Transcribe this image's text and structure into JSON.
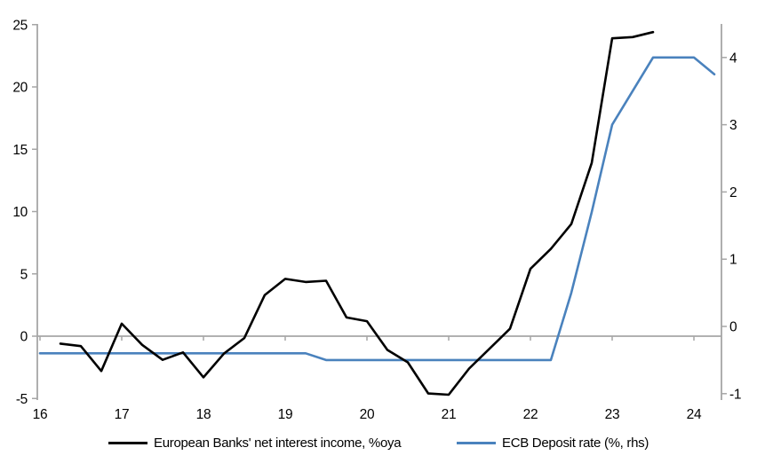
{
  "chart_data": {
    "type": "line",
    "title": "",
    "x_axis": {
      "ticks": [
        16,
        17,
        18,
        19,
        20,
        21,
        22,
        23,
        24
      ],
      "range": [
        15.97,
        24.37
      ]
    },
    "left_axis": {
      "ticks": [
        -5,
        0,
        5,
        10,
        15,
        20,
        25
      ],
      "range": [
        -5.3,
        25.1
      ]
    },
    "right_axis": {
      "ticks": [
        -1,
        0,
        1,
        2,
        3,
        4
      ],
      "range": [
        -1.08,
        4.5
      ]
    },
    "grid": "zero-line-only",
    "legend_position": "bottom",
    "axis_color": "#a6a6a6",
    "series": [
      {
        "name": "European Banks' net interest income, %oya",
        "color": "#000000",
        "axis": "left",
        "points": [
          [
            16.25,
            -0.6
          ],
          [
            16.5,
            -0.8
          ],
          [
            16.75,
            -2.8
          ],
          [
            17.0,
            1.0
          ],
          [
            17.25,
            -0.7
          ],
          [
            17.5,
            -1.9
          ],
          [
            17.75,
            -1.3
          ],
          [
            18.0,
            -3.3
          ],
          [
            18.25,
            -1.4
          ],
          [
            18.5,
            -0.15
          ],
          [
            18.75,
            3.3
          ],
          [
            19.0,
            4.6
          ],
          [
            19.25,
            4.35
          ],
          [
            19.5,
            4.45
          ],
          [
            19.75,
            1.5
          ],
          [
            20.0,
            1.2
          ],
          [
            20.25,
            -1.1
          ],
          [
            20.5,
            -2.1
          ],
          [
            20.75,
            -4.6
          ],
          [
            21.0,
            -4.7
          ],
          [
            21.25,
            -2.6
          ],
          [
            21.5,
            -1.0
          ],
          [
            21.75,
            0.6
          ],
          [
            22.0,
            5.4
          ],
          [
            22.25,
            7.0
          ],
          [
            22.5,
            9.0
          ],
          [
            22.75,
            13.9
          ],
          [
            23.0,
            23.9
          ],
          [
            23.25,
            24.0
          ],
          [
            23.5,
            24.4
          ]
        ]
      },
      {
        "name": "ECB Deposit rate (%, rhs)",
        "color": "#4a82bd",
        "axis": "right",
        "points": [
          [
            16.0,
            -0.4
          ],
          [
            16.25,
            -0.4
          ],
          [
            16.5,
            -0.4
          ],
          [
            16.75,
            -0.4
          ],
          [
            17.0,
            -0.4
          ],
          [
            17.25,
            -0.4
          ],
          [
            17.5,
            -0.4
          ],
          [
            17.75,
            -0.4
          ],
          [
            18.0,
            -0.4
          ],
          [
            18.25,
            -0.4
          ],
          [
            18.5,
            -0.4
          ],
          [
            18.75,
            -0.4
          ],
          [
            19.0,
            -0.4
          ],
          [
            19.25,
            -0.4
          ],
          [
            19.5,
            -0.5
          ],
          [
            19.75,
            -0.5
          ],
          [
            20.0,
            -0.5
          ],
          [
            20.25,
            -0.5
          ],
          [
            20.5,
            -0.5
          ],
          [
            20.75,
            -0.5
          ],
          [
            21.0,
            -0.5
          ],
          [
            21.25,
            -0.5
          ],
          [
            21.5,
            -0.5
          ],
          [
            21.75,
            -0.5
          ],
          [
            22.0,
            -0.5
          ],
          [
            22.25,
            -0.5
          ],
          [
            22.5,
            0.5
          ],
          [
            22.75,
            1.7
          ],
          [
            23.0,
            3.0
          ],
          [
            23.25,
            3.5
          ],
          [
            23.5,
            4.0
          ],
          [
            23.75,
            4.0
          ],
          [
            24.0,
            4.0
          ],
          [
            24.25,
            3.75
          ]
        ]
      }
    ]
  }
}
